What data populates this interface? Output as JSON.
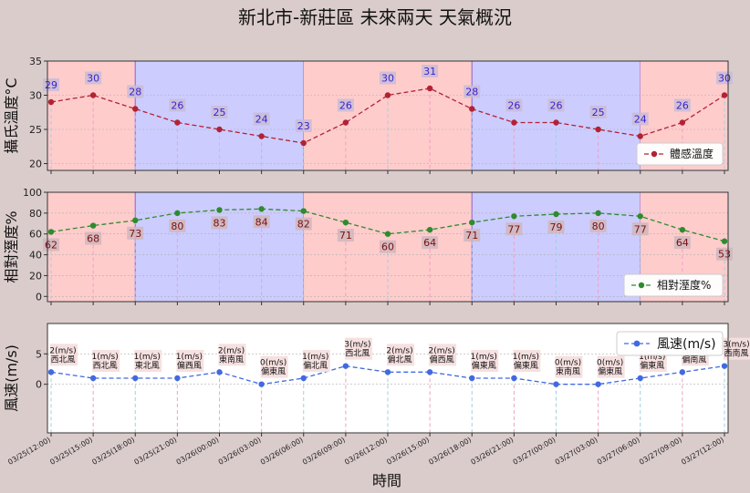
{
  "title": "新北市-新莊區 未來兩天 天氣概況",
  "xlabel": "時間",
  "colors": {
    "background": "#dbcccc",
    "day_band": "#ffcccc",
    "night_band": "#ccccff",
    "temp_line": "#b22234",
    "hum_line": "#2e8b2e",
    "wind_line": "#4169e1",
    "wind_label_bg": "#f6dede"
  },
  "chart_data": [
    {
      "type": "line",
      "name": "temperature",
      "x": [
        "03/25(12:00)",
        "03/25(15:00)",
        "03/25(18:00)",
        "03/25(21:00)",
        "03/26(00:00)",
        "03/26(03:00)",
        "03/26(06:00)",
        "03/26(09:00)",
        "03/26(12:00)",
        "03/26(15:00)",
        "03/26(18:00)",
        "03/26(21:00)",
        "03/27(00:00)",
        "03/27(03:00)",
        "03/27(06:00)",
        "03/27(09:00)",
        "03/27(12:00)"
      ],
      "series": [
        {
          "name": "體感溫度",
          "values": [
            29,
            30,
            28,
            26,
            25,
            24,
            23,
            26,
            30,
            31,
            28,
            26,
            26,
            25,
            24,
            26,
            30
          ]
        }
      ],
      "data_labels": [
        "29",
        "30",
        "28",
        "26",
        "25",
        "24",
        "23",
        "26",
        "30",
        "31",
        "28",
        "26",
        "26",
        "25",
        "24",
        "26",
        "30"
      ],
      "ylabel": "攝氏溫度°C",
      "ylim": [
        19,
        35
      ],
      "yticks": [
        "20",
        "25",
        "30",
        "35"
      ],
      "legend": "lower-right",
      "grid": true
    },
    {
      "type": "line",
      "name": "humidity",
      "x": [
        "03/25(12:00)",
        "03/25(15:00)",
        "03/25(18:00)",
        "03/25(21:00)",
        "03/26(00:00)",
        "03/26(03:00)",
        "03/26(06:00)",
        "03/26(09:00)",
        "03/26(12:00)",
        "03/26(15:00)",
        "03/26(18:00)",
        "03/26(21:00)",
        "03/27(00:00)",
        "03/27(03:00)",
        "03/27(06:00)",
        "03/27(09:00)",
        "03/27(12:00)"
      ],
      "series": [
        {
          "name": "相對溼度%",
          "values": [
            62,
            68,
            73,
            80,
            83,
            84,
            82,
            71,
            60,
            64,
            71,
            77,
            79,
            80,
            77,
            64,
            53
          ]
        }
      ],
      "data_labels": [
        "62",
        "68",
        "73",
        "80",
        "83",
        "84",
        "82",
        "71",
        "60",
        "64",
        "71",
        "77",
        "79",
        "80",
        "77",
        "64",
        "53"
      ],
      "ylabel": "相對溼度%",
      "ylim": [
        -5,
        100
      ],
      "yticks": [
        "0",
        "20",
        "40",
        "60",
        "80",
        "100"
      ],
      "legend": "lower-right",
      "grid": true
    },
    {
      "type": "line",
      "name": "wind",
      "x": [
        "03/25(12:00)",
        "03/25(15:00)",
        "03/25(18:00)",
        "03/25(21:00)",
        "03/26(00:00)",
        "03/26(03:00)",
        "03/26(06:00)",
        "03/26(09:00)",
        "03/26(12:00)",
        "03/26(15:00)",
        "03/26(18:00)",
        "03/26(21:00)",
        "03/27(00:00)",
        "03/27(03:00)",
        "03/27(06:00)",
        "03/27(09:00)",
        "03/27(12:00)"
      ],
      "series": [
        {
          "name": "風速(m/s)",
          "values": [
            2,
            1,
            1,
            1,
            2,
            0,
            1,
            3,
            2,
            2,
            1,
            1,
            0,
            0,
            1,
            2,
            3
          ]
        }
      ],
      "speed_labels": [
        "2(m/s)",
        "1(m/s)",
        "1(m/s)",
        "1(m/s)",
        "2(m/s)",
        "0(m/s)",
        "1(m/s)",
        "3(m/s)",
        "2(m/s)",
        "2(m/s)",
        "1(m/s)",
        "1(m/s)",
        "0(m/s)",
        "0(m/s)",
        "1(m/s)",
        "2(m/s)",
        "3(m/s)"
      ],
      "direction_labels": [
        "西北風",
        "西北風",
        "東北風",
        "偏西風",
        "東南風",
        "偏東風",
        "偏北風",
        "西北風",
        "偏北風",
        "偏西風",
        "偏東風",
        "偏東風",
        "東南風",
        "偏東風",
        "偏東風",
        "偏南風",
        "西南風"
      ],
      "ylabel": "風速(m/s)",
      "ylim": [
        -8,
        10
      ],
      "yticks": [
        "0",
        "5"
      ],
      "legend": "top-right",
      "grid": true
    }
  ],
  "bands": [
    {
      "from": 0,
      "to": 2,
      "kind": "day"
    },
    {
      "from": 2,
      "to": 6,
      "kind": "night"
    },
    {
      "from": 6,
      "to": 10,
      "kind": "day"
    },
    {
      "from": 10,
      "to": 14,
      "kind": "night"
    },
    {
      "from": 14,
      "to": 16,
      "kind": "day"
    }
  ]
}
